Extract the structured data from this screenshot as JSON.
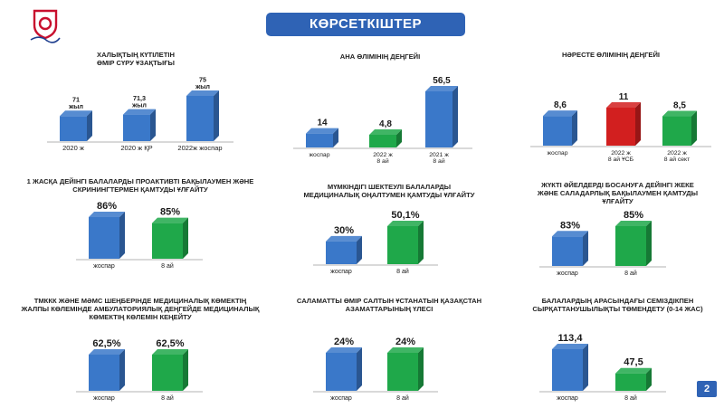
{
  "header": {
    "title": "КӨРСЕТКІШТЕР"
  },
  "page_number": "2",
  "colors": {
    "blue": "#3a78c9",
    "green": "#1fa84a",
    "red": "#d21f1f",
    "banner": "#2f63b5"
  },
  "chart_data": [
    {
      "type": "bar",
      "title": "ХАЛЫҚТЫҢ КҮТІЛЕТІН\nӨМІР СҮРУ ҰЗАҚТЫҒЫ",
      "categories": [
        "2020 ж",
        "2020 ж ҚР",
        "2022ж жоспар"
      ],
      "values": [
        71,
        71.3,
        75
      ],
      "value_labels": [
        "71\nжыл",
        "71,3\nжыл",
        "75\nжыл"
      ],
      "colors": [
        "blue",
        "blue",
        "blue"
      ]
    },
    {
      "type": "bar",
      "title": "АНА ӨЛІМІНІҢ ДЕҢГЕЙІ",
      "categories": [
        "жоспар",
        "2022 ж\n8 ай",
        "2021 ж\n8 ай"
      ],
      "values": [
        14,
        4.8,
        56.5
      ],
      "value_labels": [
        "14",
        "4,8",
        "56,5"
      ],
      "colors": [
        "blue",
        "green",
        "blue"
      ]
    },
    {
      "type": "bar",
      "title": "НӘРЕСТЕ ӨЛІМІНІҢ ДЕҢГЕЙІ",
      "categories": [
        "жоспар",
        "2022 ж\n8 ай ҰСБ",
        "2022 ж\n8 ай сект"
      ],
      "values": [
        8.6,
        11,
        8.5
      ],
      "value_labels": [
        "8,6",
        "11",
        "8,5"
      ],
      "colors": [
        "blue",
        "red",
        "green"
      ]
    },
    {
      "type": "bar",
      "title": "1 ЖАСҚА ДЕЙІНГІ БАЛАЛАРДЫ ПРОАКТИВТІ БАҚЫЛАУМЕН ЖӘНЕ\nСКРИНИНГТЕРМЕН ҚАМТУДЫ ҰЛҒАЙТУ",
      "categories": [
        "жоспар",
        "8 ай"
      ],
      "values": [
        86,
        85
      ],
      "value_labels": [
        "86%",
        "85%"
      ],
      "colors": [
        "blue",
        "green"
      ]
    },
    {
      "type": "bar",
      "title": "МҮМКІНДІГІ ШЕКТЕУЛІ БАЛАЛАРДЫ\nМЕДИЦИНАЛЫҚ ОҢАЛТУМЕН ҚАМТУДЫ ҰЛҒАЙТУ",
      "categories": [
        "жоспар",
        "8 ай"
      ],
      "values": [
        30,
        50.1
      ],
      "value_labels": [
        "30%",
        "50,1%"
      ],
      "colors": [
        "blue",
        "green"
      ]
    },
    {
      "type": "bar",
      "title": "ЖҮКТІ ӘЙЕЛДЕРДІ  БОСАНУҒА ДЕЙІНГІ ЖЕКЕ\nЖӘНЕ САЛАДАРЛЫҚ БАҚЫЛАУМЕН ҚАМТУДЫ\nҰЛҒАЙТУ",
      "categories": [
        "жоспар",
        "8 ай"
      ],
      "values": [
        83,
        85
      ],
      "value_labels": [
        "83%",
        "85%"
      ],
      "colors": [
        "blue",
        "green"
      ]
    },
    {
      "type": "bar",
      "title": "ТМККК ЖӘНЕ МӘМС ШЕҢБЕРІНДЕ МЕДИЦИНАЛЫҚ КӨМЕКТІҢ\nЖАЛПЫ КӨЛЕМІНДЕ АМБУЛАТОРИЯЛЫҚ ДЕҢГЕЙДЕ МЕДИЦИНАЛЫҚ\nКӨМЕКТІҢ КӨЛЕМІН КЕҢЕЙТУ",
      "categories": [
        "жоспар",
        "8 ай"
      ],
      "values": [
        62.5,
        62.5
      ],
      "value_labels": [
        "62,5%",
        "62,5%"
      ],
      "colors": [
        "blue",
        "green"
      ]
    },
    {
      "type": "bar",
      "title": "САЛАМАТТЫ ӨМІР САЛТЫН ҰСТАНАТЫН ҚАЗАҚСТАН\nАЗАМАТТАРЫНЫҢ ҮЛЕСІ",
      "categories": [
        "жоспар",
        "8 ай"
      ],
      "values": [
        24,
        24
      ],
      "value_labels": [
        "24%",
        "24%"
      ],
      "colors": [
        "blue",
        "green"
      ]
    },
    {
      "type": "bar",
      "title": "БАЛАЛАРДЫҢ АРАСЫНДАҒЫ СЕМІЗДІКПЕН\nСЫРҚАТТАНУШЫЛЫҚТЫ ТӨМЕНДЕТУ (0-14 ЖАС)",
      "categories": [
        "жоспар",
        "8 ай"
      ],
      "values": [
        113.4,
        47.5
      ],
      "value_labels": [
        "113,4",
        "47,5"
      ],
      "colors": [
        "blue",
        "green"
      ]
    }
  ]
}
